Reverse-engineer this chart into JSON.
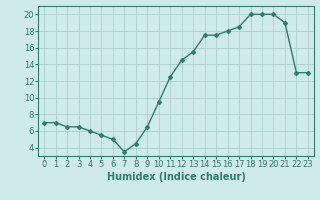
{
  "x": [
    0,
    1,
    2,
    3,
    4,
    5,
    6,
    7,
    8,
    9,
    10,
    11,
    12,
    13,
    14,
    15,
    16,
    17,
    18,
    19,
    20,
    21,
    22,
    23
  ],
  "y": [
    7.0,
    7.0,
    6.5,
    6.5,
    6.0,
    5.5,
    5.0,
    3.5,
    4.5,
    6.5,
    9.5,
    12.5,
    14.5,
    15.5,
    17.5,
    17.5,
    18.0,
    18.5,
    20.0,
    20.0,
    20.0,
    19.0,
    13.0,
    13.0
  ],
  "line_color": "#2e7d6e",
  "marker": "D",
  "marker_size": 2,
  "bg_color": "#ceeaea",
  "grid_color": "#aacece",
  "xlabel": "Humidex (Indice chaleur)",
  "ylim": [
    3,
    21
  ],
  "xlim": [
    -0.5,
    23.5
  ],
  "yticks": [
    4,
    6,
    8,
    10,
    12,
    14,
    16,
    18,
    20
  ],
  "xticks": [
    0,
    1,
    2,
    3,
    4,
    5,
    6,
    7,
    8,
    9,
    10,
    11,
    12,
    13,
    14,
    15,
    16,
    17,
    18,
    19,
    20,
    21,
    22,
    23
  ],
  "tick_fontsize": 6,
  "xlabel_fontsize": 7,
  "line_width": 1.0
}
